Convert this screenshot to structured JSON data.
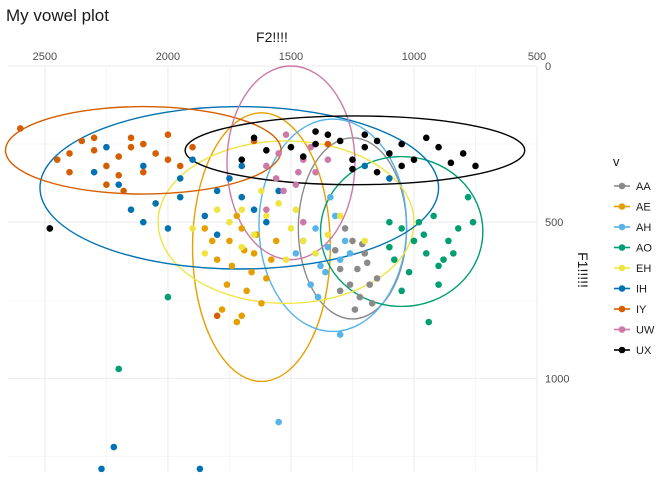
{
  "chart_data": {
    "type": "scatter",
    "title": "My vowel plot",
    "xlabel": "F2!!!!",
    "ylabel": "F1!!!!!",
    "x_axis_position": "top",
    "y_axis_position": "right",
    "x_reversed": true,
    "y_reversed": true,
    "xlim": [
      2650,
      500
    ],
    "ylim": [
      0,
      1300
    ],
    "x_ticks": [
      2500,
      2000,
      1500,
      1000,
      500
    ],
    "y_ticks": [
      0,
      500,
      1000
    ],
    "grid": true,
    "legend": {
      "title": "v",
      "position": "right"
    },
    "series": [
      {
        "name": "AA",
        "color": "#8a8a8a",
        "ellipse": {
          "cx": 1250,
          "cy": 520,
          "rx": 220,
          "ry": 290
        },
        "points": [
          [
            1250,
            560
          ],
          [
            1200,
            600
          ],
          [
            1300,
            650
          ],
          [
            1180,
            700
          ],
          [
            1220,
            740
          ],
          [
            1280,
            520
          ],
          [
            1150,
            680
          ],
          [
            1320,
            590
          ],
          [
            1240,
            780
          ],
          [
            1190,
            630
          ],
          [
            1260,
            700
          ],
          [
            1210,
            570
          ],
          [
            1300,
            720
          ],
          [
            1170,
            760
          ],
          [
            1230,
            650
          ]
        ]
      },
      {
        "name": "AE",
        "color": "#e69f00",
        "ellipse": {
          "cx": 1620,
          "cy": 580,
          "rx": 280,
          "ry": 430
        },
        "points": [
          [
            1700,
            520
          ],
          [
            1650,
            600
          ],
          [
            1750,
            560
          ],
          [
            1600,
            680
          ],
          [
            1680,
            720
          ],
          [
            1800,
            620
          ],
          [
            1720,
            480
          ],
          [
            1640,
            540
          ],
          [
            1580,
            620
          ],
          [
            1760,
            700
          ],
          [
            1700,
            800
          ],
          [
            1820,
            560
          ],
          [
            1660,
            660
          ],
          [
            1620,
            760
          ],
          [
            1740,
            640
          ],
          [
            1690,
            590
          ],
          [
            1850,
            520
          ],
          [
            1780,
            780
          ],
          [
            1560,
            560
          ],
          [
            1720,
            820
          ]
        ]
      },
      {
        "name": "AH",
        "color": "#56b4e9",
        "ellipse": {
          "cx": 1330,
          "cy": 510,
          "rx": 300,
          "ry": 340
        },
        "points": [
          [
            1400,
            520
          ],
          [
            1350,
            580
          ],
          [
            1300,
            620
          ],
          [
            1450,
            560
          ],
          [
            1380,
            640
          ],
          [
            1320,
            480
          ],
          [
            1420,
            700
          ],
          [
            1280,
            560
          ],
          [
            1360,
            660
          ],
          [
            1480,
            600
          ],
          [
            1340,
            420
          ],
          [
            1390,
            740
          ],
          [
            1260,
            600
          ],
          [
            1550,
            1140
          ],
          [
            1300,
            860
          ]
        ]
      },
      {
        "name": "AO",
        "color": "#009e73",
        "ellipse": {
          "cx": 1050,
          "cy": 530,
          "rx": 330,
          "ry": 240
        },
        "points": [
          [
            1000,
            560
          ],
          [
            950,
            600
          ],
          [
            1050,
            520
          ],
          [
            900,
            640
          ],
          [
            980,
            500
          ],
          [
            1100,
            580
          ],
          [
            860,
            560
          ],
          [
            920,
            480
          ],
          [
            1020,
            660
          ],
          [
            880,
            620
          ],
          [
            960,
            540
          ],
          [
            840,
            600
          ],
          [
            1080,
            620
          ],
          [
            900,
            700
          ],
          [
            780,
            420
          ],
          [
            820,
            520
          ],
          [
            760,
            500
          ],
          [
            940,
            820
          ],
          [
            2200,
            970
          ],
          [
            2000,
            740
          ],
          [
            1100,
            500
          ],
          [
            1050,
            720
          ]
        ]
      },
      {
        "name": "EH",
        "color": "#f0e442",
        "ellipse": {
          "cx": 1520,
          "cy": 500,
          "rx": 520,
          "ry": 260
        },
        "points": [
          [
            1600,
            480
          ],
          [
            1500,
            520
          ],
          [
            1700,
            460
          ],
          [
            1450,
            560
          ],
          [
            1550,
            440
          ],
          [
            1750,
            500
          ],
          [
            1650,
            540
          ],
          [
            1400,
            600
          ],
          [
            1800,
            460
          ],
          [
            1520,
            620
          ],
          [
            1350,
            540
          ],
          [
            1900,
            520
          ],
          [
            1620,
            400
          ],
          [
            1480,
            460
          ],
          [
            1200,
            560
          ],
          [
            1850,
            600
          ],
          [
            1300,
            480
          ],
          [
            1700,
            580
          ]
        ]
      },
      {
        "name": "IH",
        "color": "#0072b2",
        "ellipse": {
          "cx": 1710,
          "cy": 390,
          "rx": 810,
          "ry": 260
        },
        "points": [
          [
            2100,
            320
          ],
          [
            1950,
            360
          ],
          [
            1800,
            400
          ],
          [
            2200,
            380
          ],
          [
            1700,
            420
          ],
          [
            2050,
            440
          ],
          [
            1900,
            300
          ],
          [
            1650,
            460
          ],
          [
            2300,
            340
          ],
          [
            1850,
            480
          ],
          [
            2000,
            520
          ],
          [
            1750,
            360
          ],
          [
            1600,
            500
          ],
          [
            2150,
            460
          ],
          [
            1550,
            400
          ],
          [
            1950,
            420
          ],
          [
            2250,
            260
          ],
          [
            1800,
            540
          ],
          [
            1700,
            320
          ],
          [
            2100,
            500
          ],
          [
            2480,
            520
          ],
          [
            2270,
            1290
          ],
          [
            2220,
            1220
          ],
          [
            1870,
            1290
          ],
          [
            1200,
            320
          ],
          [
            1100,
            360
          ]
        ]
      },
      {
        "name": "IY",
        "color": "#d55e00",
        "ellipse": {
          "cx": 2100,
          "cy": 270,
          "rx": 560,
          "ry": 140
        },
        "points": [
          [
            2300,
            270
          ],
          [
            2200,
            290
          ],
          [
            2100,
            250
          ],
          [
            2400,
            280
          ],
          [
            2000,
            300
          ],
          [
            2250,
            320
          ],
          [
            2150,
            260
          ],
          [
            2350,
            240
          ],
          [
            2050,
            280
          ],
          [
            1950,
            320
          ],
          [
            2450,
            300
          ],
          [
            2200,
            350
          ],
          [
            2100,
            340
          ],
          [
            2300,
            230
          ],
          [
            1900,
            260
          ],
          [
            2000,
            220
          ],
          [
            2600,
            200
          ],
          [
            2400,
            340
          ],
          [
            2150,
            230
          ],
          [
            2250,
            380
          ],
          [
            2180,
            400
          ],
          [
            1800,
            800
          ],
          [
            1650,
            240
          ],
          [
            1350,
            250
          ]
        ]
      },
      {
        "name": "UW",
        "color": "#cc79a7",
        "ellipse": {
          "cx": 1500,
          "cy": 310,
          "rx": 260,
          "ry": 310
        },
        "points": [
          [
            1500,
            260
          ],
          [
            1450,
            300
          ],
          [
            1550,
            280
          ],
          [
            1400,
            340
          ],
          [
            1600,
            320
          ],
          [
            1480,
            380
          ],
          [
            1520,
            220
          ],
          [
            1420,
            260
          ],
          [
            1560,
            360
          ],
          [
            1350,
            300
          ],
          [
            1470,
            340
          ],
          [
            1530,
            400
          ],
          [
            1600,
            460
          ],
          [
            1450,
            500
          ]
        ]
      },
      {
        "name": "UX",
        "color": "#000000",
        "ellipse": {
          "cx": 1240,
          "cy": 270,
          "rx": 690,
          "ry": 110
        },
        "points": [
          [
            1300,
            240
          ],
          [
            1200,
            260
          ],
          [
            1100,
            280
          ],
          [
            1400,
            250
          ],
          [
            1000,
            300
          ],
          [
            1250,
            300
          ],
          [
            1350,
            220
          ],
          [
            900,
            260
          ],
          [
            1150,
            240
          ],
          [
            1050,
            320
          ],
          [
            800,
            280
          ],
          [
            1450,
            290
          ],
          [
            950,
            230
          ],
          [
            1250,
            330
          ],
          [
            1500,
            260
          ],
          [
            1600,
            270
          ],
          [
            1700,
            300
          ],
          [
            850,
            310
          ],
          [
            750,
            320
          ],
          [
            1150,
            340
          ],
          [
            1400,
            210
          ],
          [
            1050,
            250
          ],
          [
            1650,
            230
          ],
          [
            1200,
            220
          ],
          [
            2480,
            520
          ]
        ]
      }
    ]
  }
}
